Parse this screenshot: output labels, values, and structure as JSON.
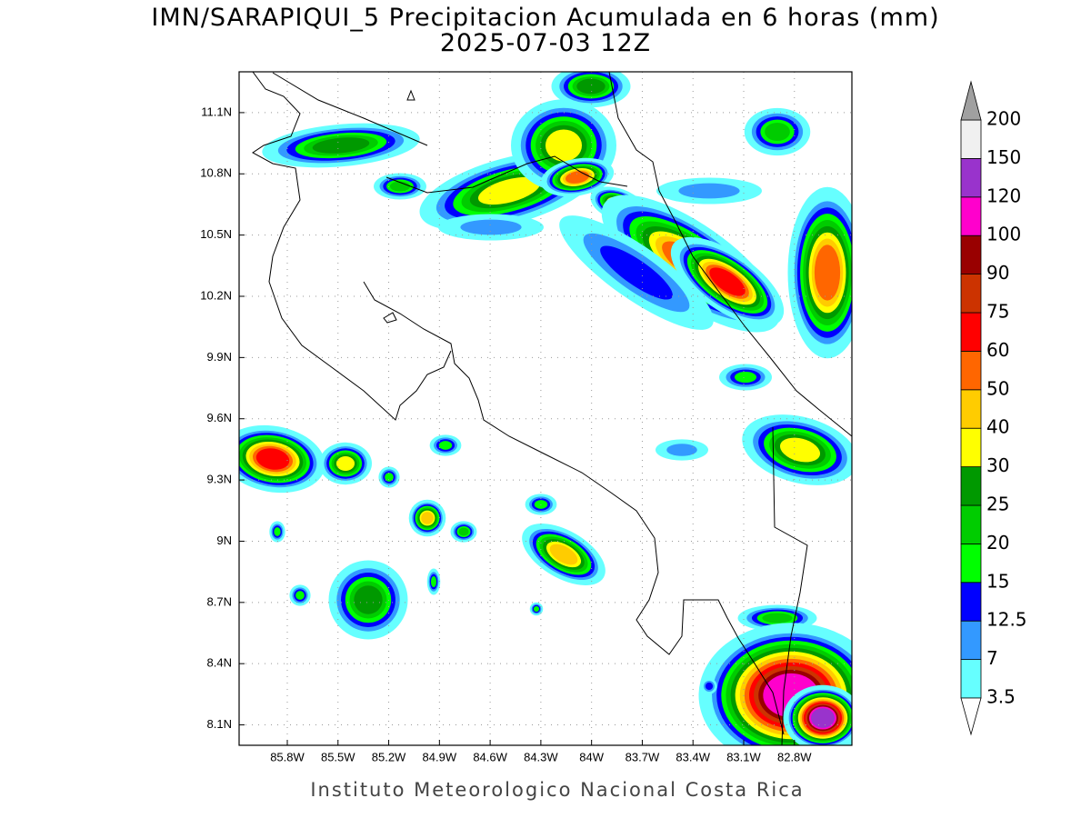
{
  "title": "IMN/SARAPIQUI_5 Precipitacion Acumulada en 6 horas (mm)",
  "subtitle": "2025-07-03 12Z",
  "footer": "Instituto Meteorologico Nacional Costa Rica",
  "map": {
    "lon_lim": [
      -86.085,
      -82.46
    ],
    "lat_lim": [
      8.0,
      11.3
    ],
    "lon_ticks": [
      {
        "value": -85.8,
        "label": "85.8W"
      },
      {
        "value": -85.5,
        "label": "85.5W"
      },
      {
        "value": -85.2,
        "label": "85.2W"
      },
      {
        "value": -84.9,
        "label": "84.9W"
      },
      {
        "value": -84.6,
        "label": "84.6W"
      },
      {
        "value": -84.3,
        "label": "84.3W"
      },
      {
        "value": -84.0,
        "label": "84W"
      },
      {
        "value": -83.7,
        "label": "83.7W"
      },
      {
        "value": -83.4,
        "label": "83.4W"
      },
      {
        "value": -83.1,
        "label": "83.1W"
      },
      {
        "value": -82.8,
        "label": "82.8W"
      }
    ],
    "lat_ticks": [
      {
        "value": 8.1,
        "label": "8.1N"
      },
      {
        "value": 8.4,
        "label": "8.4N"
      },
      {
        "value": 8.7,
        "label": "8.7N"
      },
      {
        "value": 9.0,
        "label": "9N"
      },
      {
        "value": 9.3,
        "label": "9.3N"
      },
      {
        "value": 9.6,
        "label": "9.6N"
      },
      {
        "value": 9.9,
        "label": "9.9N"
      },
      {
        "value": 10.2,
        "label": "10.2N"
      },
      {
        "value": 10.5,
        "label": "10.5N"
      },
      {
        "value": 10.8,
        "label": "10.8N"
      },
      {
        "value": 11.1,
        "label": "11.1N"
      }
    ],
    "grid": true
  },
  "colorbar": {
    "levels": [
      3.5,
      7,
      12.5,
      15,
      20,
      25,
      30,
      40,
      50,
      60,
      75,
      90,
      100,
      120,
      150,
      200
    ],
    "colors": [
      "#66ffff",
      "#3399ff",
      "#0000ff",
      "#00ff00",
      "#00cc00",
      "#009900",
      "#ffff00",
      "#ffcc00",
      "#ff6600",
      "#ff0000",
      "#cc3300",
      "#990000",
      "#ff00cc",
      "#9933cc",
      "#f0f0f0"
    ],
    "under_color": "#ffffff",
    "over_color": "#a0a0a0"
  }
}
